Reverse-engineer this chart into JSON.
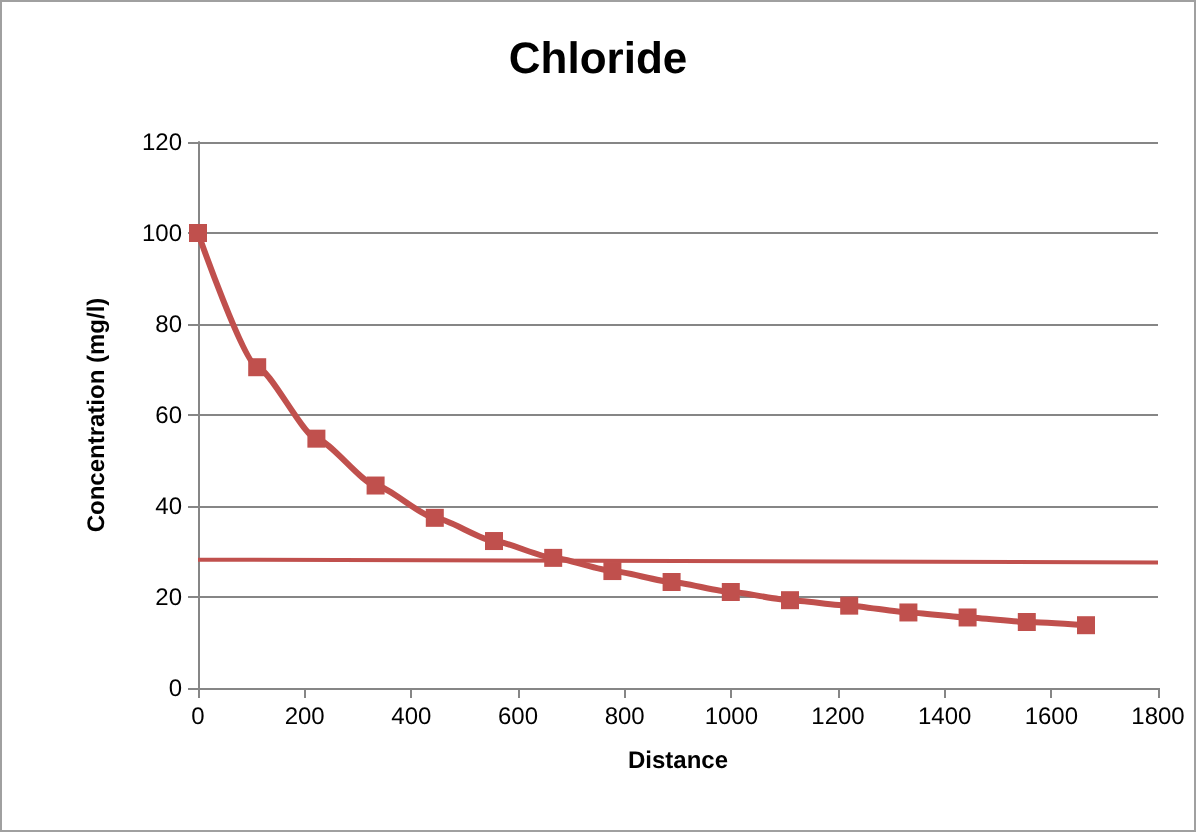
{
  "chart_data": {
    "type": "line",
    "title": "Chloride",
    "xlabel": "Distance",
    "ylabel": "Concentration (mg/l)",
    "x": [
      0,
      111,
      222,
      333,
      444,
      555,
      666,
      777,
      888,
      999,
      1110,
      1221,
      1332,
      1443,
      1554,
      1665
    ],
    "series": [
      {
        "color": "#c0504d",
        "marker": "square",
        "values": [
          100,
          70.5,
          54.8,
          44.5,
          37.4,
          32.3,
          28.6,
          25.7,
          23.3,
          21.1,
          19.3,
          18.1,
          16.6,
          15.5,
          14.5,
          13.8
        ]
      },
      {
        "color": "#c0504d",
        "marker": "none",
        "x": [
          0,
          1800
        ],
        "values": [
          28.2,
          27.6
        ]
      }
    ],
    "xlim": [
      0,
      1800
    ],
    "xticks": [
      0,
      200,
      400,
      600,
      800,
      1000,
      1200,
      1400,
      1600,
      1800
    ],
    "ylim": [
      0,
      120
    ],
    "yticks": [
      0,
      20,
      40,
      60,
      80,
      100,
      120
    ],
    "grid": "y"
  }
}
